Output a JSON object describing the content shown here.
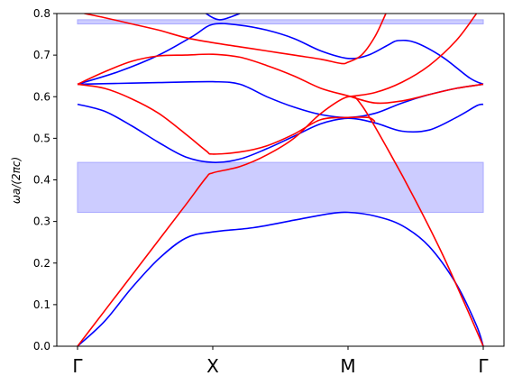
{
  "chart_data": {
    "type": "line",
    "title": "",
    "xlabel": "",
    "ylabel": "ωa/(2πc)",
    "x_ticks": [
      "Γ",
      "X",
      "M",
      "Γ"
    ],
    "x_tick_positions": [
      0,
      1,
      2,
      3
    ],
    "xlim": [
      0,
      3
    ],
    "ylim": [
      0,
      0.8
    ],
    "y_ticks": [
      "0.0",
      "0.1",
      "0.2",
      "0.3",
      "0.4",
      "0.5",
      "0.6",
      "0.7",
      "0.8"
    ],
    "grid": false,
    "legend": "none",
    "colors": {
      "te": "#0000ff",
      "tm": "#ff0000",
      "gap_fill": "#ccccff",
      "gap_edge": "#aaaaff"
    },
    "band_gaps": [
      {
        "ymin": 0.322,
        "ymax": 0.442
      },
      {
        "ymin": 0.775,
        "ymax": 0.785
      }
    ],
    "series": [
      {
        "color": "blue",
        "points": [
          [
            0,
            0
          ],
          [
            0.2,
            0.06
          ],
          [
            0.4,
            0.14
          ],
          [
            0.6,
            0.21
          ],
          [
            0.8,
            0.26
          ],
          [
            1.0,
            0.275
          ],
          [
            1.3,
            0.285
          ],
          [
            1.6,
            0.303
          ],
          [
            1.85,
            0.318
          ],
          [
            2.0,
            0.322
          ],
          [
            2.2,
            0.313
          ],
          [
            2.4,
            0.29
          ],
          [
            2.6,
            0.24
          ],
          [
            2.8,
            0.15
          ],
          [
            2.95,
            0.05
          ],
          [
            3.0,
            0
          ]
        ]
      },
      {
        "color": "blue",
        "points": [
          [
            0,
            0.582
          ],
          [
            0.2,
            0.565
          ],
          [
            0.4,
            0.53
          ],
          [
            0.6,
            0.49
          ],
          [
            0.8,
            0.455
          ],
          [
            1.0,
            0.442
          ],
          [
            1.2,
            0.45
          ],
          [
            1.4,
            0.475
          ],
          [
            1.6,
            0.505
          ],
          [
            1.8,
            0.535
          ],
          [
            2.0,
            0.548
          ],
          [
            2.2,
            0.537
          ],
          [
            2.4,
            0.517
          ],
          [
            2.6,
            0.52
          ],
          [
            2.8,
            0.55
          ],
          [
            2.95,
            0.578
          ],
          [
            3.0,
            0.582
          ]
        ]
      },
      {
        "color": "blue",
        "points": [
          [
            0,
            0.63
          ],
          [
            0.3,
            0.632
          ],
          [
            0.6,
            0.634
          ],
          [
            1.0,
            0.636
          ],
          [
            1.2,
            0.63
          ],
          [
            1.4,
            0.6
          ],
          [
            1.6,
            0.575
          ],
          [
            1.8,
            0.557
          ],
          [
            2.0,
            0.55
          ],
          [
            2.2,
            0.56
          ],
          [
            2.4,
            0.585
          ],
          [
            2.6,
            0.605
          ],
          [
            2.8,
            0.62
          ],
          [
            3.0,
            0.63
          ]
        ]
      },
      {
        "color": "blue",
        "points": [
          [
            0,
            0.63
          ],
          [
            0.3,
            0.66
          ],
          [
            0.6,
            0.7
          ],
          [
            0.85,
            0.745
          ],
          [
            1.0,
            0.774
          ],
          [
            1.2,
            0.772
          ],
          [
            1.4,
            0.76
          ],
          [
            1.6,
            0.74
          ],
          [
            1.8,
            0.71
          ],
          [
            2.0,
            0.692
          ],
          [
            2.15,
            0.7
          ],
          [
            2.3,
            0.725
          ],
          [
            2.37,
            0.735
          ],
          [
            2.5,
            0.73
          ],
          [
            2.7,
            0.695
          ],
          [
            2.9,
            0.645
          ],
          [
            3.0,
            0.63
          ]
        ]
      },
      {
        "color": "blue",
        "points": [
          [
            0.95,
            0.8
          ],
          [
            1.0,
            0.79
          ],
          [
            1.05,
            0.785
          ],
          [
            1.1,
            0.788
          ],
          [
            1.2,
            0.8
          ]
        ]
      },
      {
        "color": "red",
        "points": [
          [
            0,
            0
          ],
          [
            0.2,
            0.085
          ],
          [
            0.4,
            0.17
          ],
          [
            0.6,
            0.255
          ],
          [
            0.8,
            0.34
          ],
          [
            0.95,
            0.405
          ],
          [
            1.0,
            0.417
          ],
          [
            1.2,
            0.432
          ],
          [
            1.4,
            0.46
          ],
          [
            1.6,
            0.5
          ],
          [
            1.8,
            0.56
          ],
          [
            2.0,
            0.6
          ],
          [
            2.1,
            0.58
          ],
          [
            2.3,
            0.47
          ],
          [
            2.5,
            0.35
          ],
          [
            2.7,
            0.22
          ],
          [
            2.9,
            0.075
          ],
          [
            3.0,
            0
          ]
        ]
      },
      {
        "color": "red",
        "points": [
          [
            0,
            0.63
          ],
          [
            0.2,
            0.62
          ],
          [
            0.4,
            0.595
          ],
          [
            0.6,
            0.56
          ],
          [
            0.8,
            0.51
          ],
          [
            0.95,
            0.47
          ],
          [
            1.0,
            0.462
          ],
          [
            1.2,
            0.467
          ],
          [
            1.4,
            0.482
          ],
          [
            1.6,
            0.51
          ],
          [
            1.8,
            0.545
          ],
          [
            2.0,
            0.55
          ],
          [
            2.15,
            0.55
          ],
          [
            2.2,
            0.54
          ]
        ]
      },
      {
        "color": "red",
        "points": [
          [
            0,
            0.63
          ],
          [
            0.2,
            0.66
          ],
          [
            0.4,
            0.685
          ],
          [
            0.6,
            0.698
          ],
          [
            0.8,
            0.7
          ],
          [
            1.0,
            0.702
          ],
          [
            1.2,
            0.695
          ],
          [
            1.4,
            0.675
          ],
          [
            1.6,
            0.65
          ],
          [
            1.8,
            0.62
          ],
          [
            2.0,
            0.602
          ],
          [
            2.2,
            0.585
          ],
          [
            2.4,
            0.59
          ],
          [
            2.6,
            0.605
          ],
          [
            2.8,
            0.62
          ],
          [
            3.0,
            0.63
          ]
        ]
      },
      {
        "color": "red",
        "points": [
          [
            0.05,
            0.8
          ],
          [
            0.2,
            0.79
          ],
          [
            0.4,
            0.775
          ],
          [
            0.6,
            0.76
          ],
          [
            0.8,
            0.742
          ],
          [
            1.0,
            0.73
          ],
          [
            1.2,
            0.72
          ],
          [
            1.4,
            0.71
          ],
          [
            1.6,
            0.7
          ],
          [
            1.8,
            0.69
          ],
          [
            1.95,
            0.68
          ],
          [
            2.0,
            0.683
          ],
          [
            2.1,
            0.7
          ],
          [
            2.2,
            0.745
          ],
          [
            2.28,
            0.8
          ]
        ]
      },
      {
        "color": "red",
        "points": [
          [
            2.0,
            0.6
          ],
          [
            2.2,
            0.61
          ],
          [
            2.4,
            0.635
          ],
          [
            2.6,
            0.675
          ],
          [
            2.8,
            0.735
          ],
          [
            2.95,
            0.8
          ]
        ]
      }
    ]
  }
}
